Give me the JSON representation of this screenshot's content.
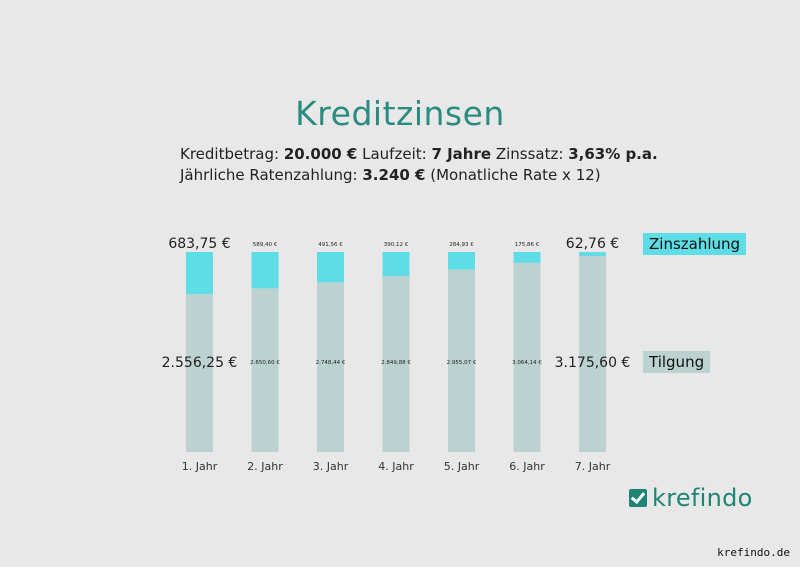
{
  "title": "Kreditzinsen",
  "info": {
    "line1": [
      {
        "label": "Kreditbetrag: ",
        "value": "20.000 €"
      },
      {
        "label": " Laufzeit: ",
        "value": "7 Jahre"
      },
      {
        "label": " Zinssatz: ",
        "value": "3,63% p.a."
      }
    ],
    "line2_label": "Jährliche Ratenzahlung: ",
    "line2_value": "3.240 €",
    "line2_suffix": " (Monatliche Rate x 12)"
  },
  "legend": {
    "zins": "Zinszahlung",
    "tilgung": "Tilgung"
  },
  "colors": {
    "zins": "#5fdde6",
    "tilgung": "#bcd2d0",
    "title": "#2a8c80",
    "brand": "#1e8474"
  },
  "logo": "krefindo",
  "site": "krefindo.de",
  "chart_data": {
    "type": "bar",
    "stacked": true,
    "categories": [
      "1. Jahr",
      "2. Jahr",
      "3. Jahr",
      "4. Jahr",
      "5. Jahr",
      "6. Jahr",
      "7. Jahr"
    ],
    "series": [
      {
        "name": "Tilgung",
        "values": [
          2556.25,
          2650.6,
          2748.44,
          2849.88,
          2955.07,
          3064.14,
          3175.6
        ],
        "labels": [
          "2.556,25 €",
          "2.650,60 €",
          "2.748,44 €",
          "2.849,88 €",
          "2.955,07 €",
          "3.064,14 €",
          "3.175,60 €"
        ]
      },
      {
        "name": "Zinszahlung",
        "values": [
          683.75,
          589.4,
          491.56,
          390.12,
          284.93,
          175.86,
          62.76
        ],
        "labels": [
          "683,75 €",
          "589,40 €",
          "491,56 €",
          "390,12 €",
          "284,93 €",
          "175,86 €",
          "62,76 €"
        ]
      }
    ],
    "ylim": [
      0,
      3240
    ]
  }
}
